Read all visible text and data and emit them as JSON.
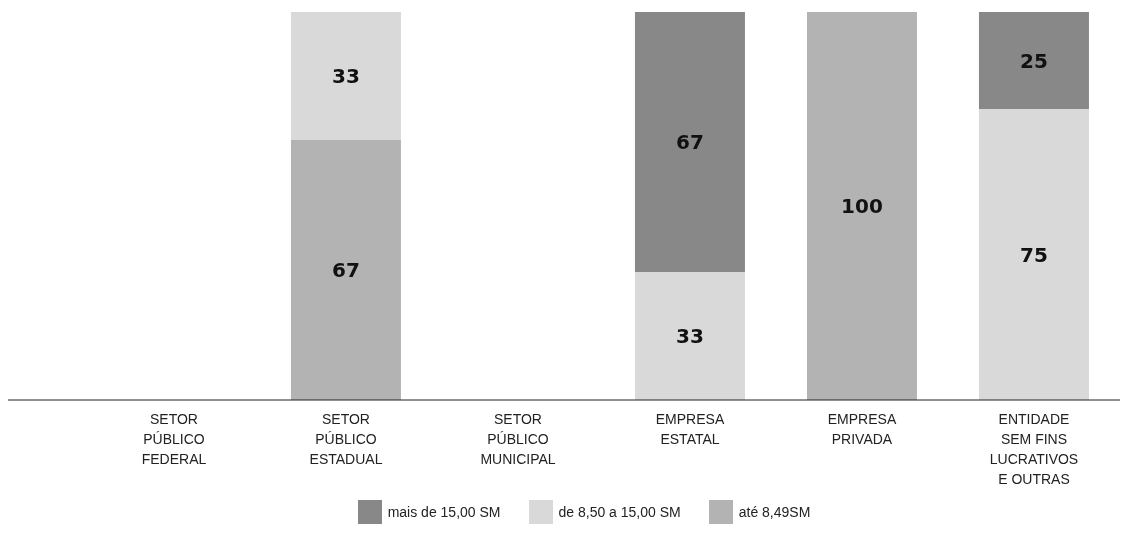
{
  "chart_data": {
    "type": "bar",
    "stacked": true,
    "data_labels": true,
    "legend": "bottom",
    "categories": [
      "SETOR PÚBLICO FEDERAL",
      "SETOR PÚBLICO ESTADUAL",
      "SETOR PÚBLICO MUNICIPAL",
      "EMPRESA ESTATAL",
      "EMPRESA PRIVADA",
      "ENTIDADE SEM FINS LUCRATIVOS E OUTRAS"
    ],
    "series": [
      {
        "name": "até 8,49SM",
        "color": "#b3b3b3",
        "values": [
          null,
          67,
          null,
          null,
          100,
          null
        ]
      },
      {
        "name": "de 8,50 a 15,00 SM",
        "color": "#d9d9d9",
        "values": [
          null,
          33,
          null,
          33,
          null,
          75
        ]
      },
      {
        "name": "mais de 15,00 SM",
        "color": "#888888",
        "values": [
          null,
          null,
          null,
          67,
          null,
          25
        ]
      }
    ]
  }
}
